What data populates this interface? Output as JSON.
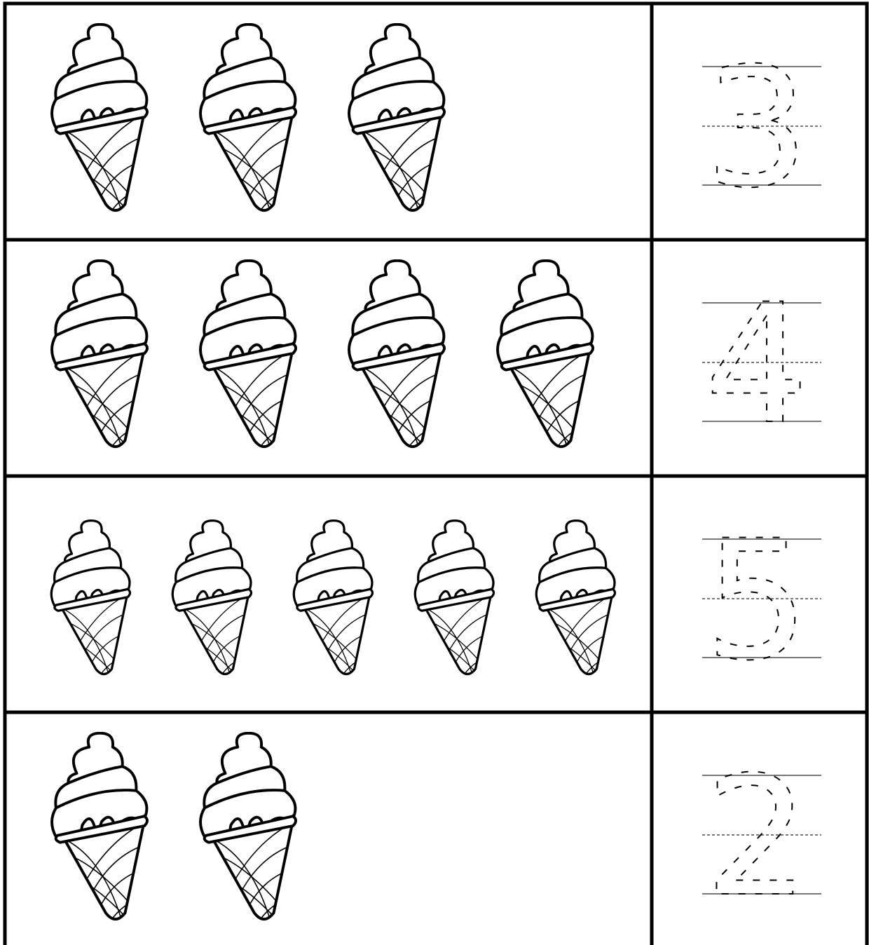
{
  "rows": [
    {
      "digit": 3
    },
    {
      "digit": 4
    },
    {
      "digit": 5
    },
    {
      "digit": 2
    }
  ]
}
